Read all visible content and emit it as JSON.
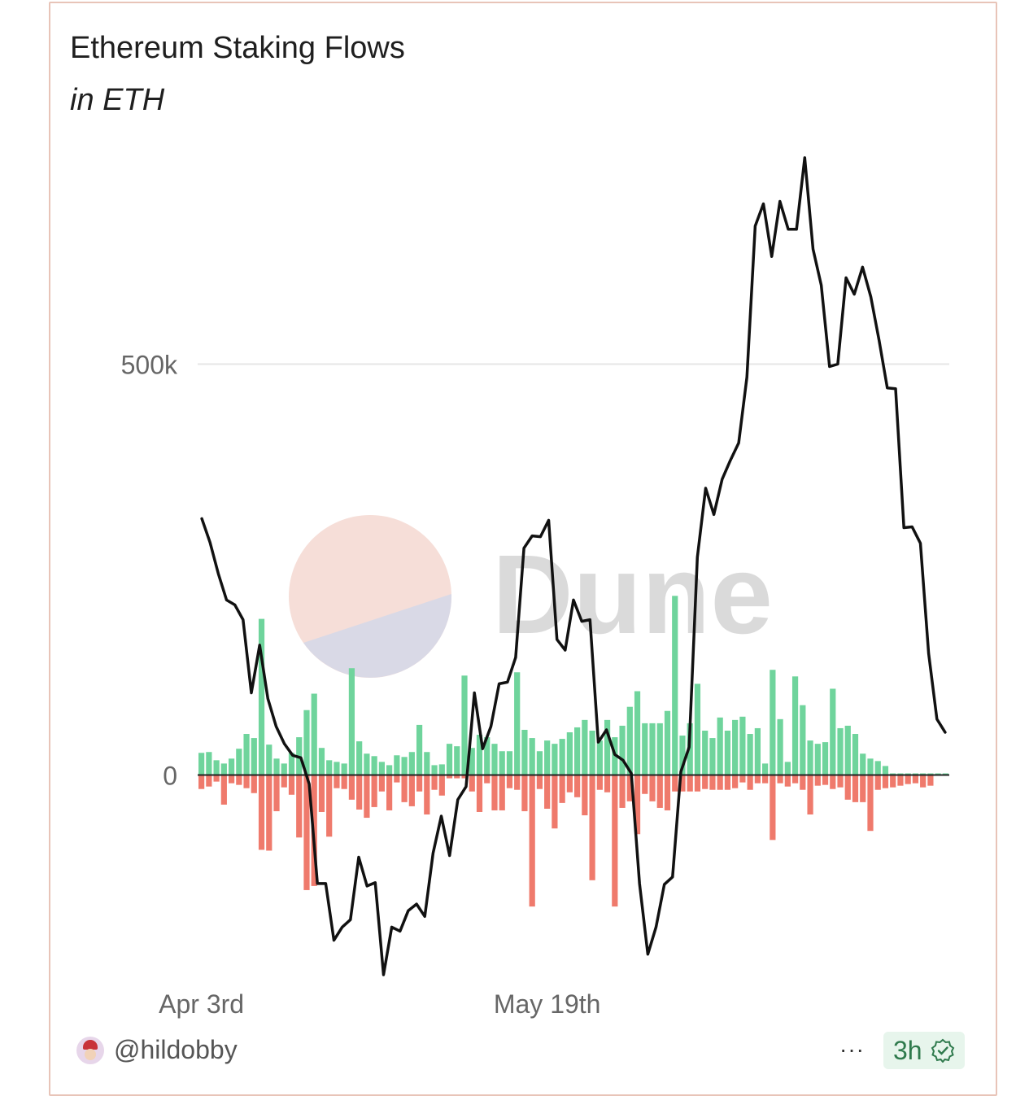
{
  "card": {
    "title": "Ethereum Staking Flows",
    "subtitle": "in ETH",
    "author": "@hildobby",
    "more_label": "···",
    "age_label": "3h"
  },
  "watermark": {
    "text": "Dune"
  },
  "colors": {
    "inflow": "#6fd49c",
    "outflow": "#ef7a6c",
    "line": "#111111",
    "grid": "#e6e6e6",
    "axis_text": "#666666"
  },
  "chart_data": {
    "type": "bar",
    "title": "Ethereum Staking Flows",
    "subtitle": "in ETH",
    "y_ticks": [
      {
        "value": 0,
        "label": "0"
      },
      {
        "value": 500000,
        "label": "500k"
      }
    ],
    "x_ticks": [
      {
        "index": 0,
        "label": "Apr 3rd"
      },
      {
        "index": 46,
        "label": "May 19th"
      }
    ],
    "ylim": [
      -245000,
      745000
    ],
    "grid": true,
    "series": [
      {
        "kind": "bar",
        "color": "#6fd49c",
        "values": [
          27000,
          28000,
          18000,
          14000,
          20000,
          32000,
          50000,
          45000,
          190000,
          37000,
          20000,
          14000,
          27000,
          46000,
          79000,
          99000,
          33000,
          18000,
          16000,
          14000,
          130000,
          41000,
          26000,
          23000,
          16000,
          12000,
          24000,
          22000,
          28000,
          61000,
          28000,
          12000,
          13000,
          38000,
          35000,
          121000,
          33000,
          49000,
          46000,
          38000,
          29000,
          29000,
          125000,
          55000,
          45000,
          29000,
          42000,
          38000,
          44000,
          52000,
          58000,
          67000,
          54000,
          42000,
          67000,
          46000,
          60000,
          83000,
          102000,
          63000,
          63000,
          63000,
          78000,
          218000,
          48000,
          63000,
          111000,
          54000,
          45000,
          70000,
          54000,
          67000,
          71000,
          50000,
          57000,
          14000,
          128000,
          68000,
          16000,
          120000,
          85000,
          42000,
          38000,
          40000,
          105000,
          57000,
          60000,
          50000,
          26000,
          20000,
          17000,
          11000,
          2000,
          2000,
          2000,
          2000,
          2000,
          2000,
          2000,
          2000
        ]
      },
      {
        "kind": "bar",
        "color": "#ef7a6c",
        "values": [
          -17000,
          -14000,
          -8000,
          -36000,
          -10000,
          -12000,
          -16000,
          -22000,
          -91000,
          -92000,
          -44000,
          -15000,
          -24000,
          -76000,
          -140000,
          -135000,
          -45000,
          -75000,
          -16000,
          -17000,
          -30000,
          -42000,
          -52000,
          -39000,
          -20000,
          -43000,
          -9000,
          -33000,
          -38000,
          -20000,
          -48000,
          -18000,
          -25000,
          -4000,
          -4000,
          -4000,
          -20000,
          -45000,
          -10000,
          -43000,
          -43000,
          -16000,
          -18000,
          -44000,
          -160000,
          -17000,
          -41000,
          -65000,
          -34000,
          -21000,
          -27000,
          -49000,
          -128000,
          -18000,
          -21000,
          -160000,
          -40000,
          -32000,
          -72000,
          -23000,
          -32000,
          -40000,
          -43000,
          -20000,
          -20000,
          -20000,
          -20000,
          -17000,
          -18000,
          -18000,
          -18000,
          -16000,
          -9000,
          -18000,
          -10000,
          -10000,
          -79000,
          -10000,
          -14000,
          -10000,
          -18000,
          -48000,
          -13000,
          -12000,
          -17000,
          -15000,
          -30000,
          -33000,
          -33000,
          -68000,
          -18000,
          -16000,
          -15000,
          -13000,
          -11000,
          -10000,
          -15000,
          -13000
        ]
      },
      {
        "kind": "line",
        "color": "#111111",
        "values": [
          312000,
          283000,
          245000,
          213000,
          207000,
          189000,
          100000,
          158000,
          93000,
          59000,
          38000,
          24000,
          21000,
          -11000,
          -132000,
          -132000,
          -201000,
          -185000,
          -176000,
          -100000,
          -135000,
          -131000,
          -243000,
          -185000,
          -190000,
          -165000,
          -157000,
          -172000,
          -95000,
          -50000,
          -98000,
          -30000,
          -14000,
          100000,
          32000,
          59000,
          111000,
          113000,
          143000,
          276000,
          291000,
          290000,
          310000,
          165000,
          152000,
          213000,
          187000,
          189000,
          40000,
          55000,
          25000,
          18000,
          2000,
          -132000,
          -218000,
          -185000,
          -133000,
          -124000,
          4000,
          34000,
          265000,
          349000,
          317000,
          360000,
          383000,
          404000,
          484000,
          668000,
          695000,
          631000,
          698000,
          664000,
          664000,
          751000,
          640000,
          596000,
          497000,
          500000,
          605000,
          585000,
          618000,
          582000,
          529000,
          471000,
          470000,
          301000,
          302000,
          282000,
          148000,
          68000,
          52000
        ]
      }
    ]
  }
}
